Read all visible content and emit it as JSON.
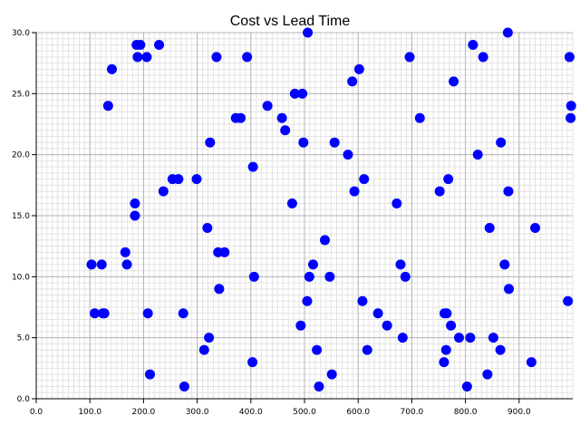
{
  "chart_data": {
    "type": "scatter",
    "title": "Cost vs Lead Time",
    "xlabel": "",
    "ylabel": "",
    "xlim": [
      0,
      1000
    ],
    "ylim": [
      0,
      30
    ],
    "x_ticks": [
      0,
      100,
      200,
      300,
      400,
      500,
      600,
      700,
      800,
      900
    ],
    "x_tick_labels": [
      "0.0",
      "100.0",
      "200.0",
      "300.0",
      "400.0",
      "500.0",
      "600.0",
      "700.0",
      "800.0",
      "900.0"
    ],
    "y_ticks": [
      0,
      5,
      10,
      15,
      20,
      25,
      30
    ],
    "y_tick_labels": [
      "0.0",
      "5.0",
      "10.0",
      "15.0",
      "20.0",
      "25.0",
      "30.0"
    ],
    "grid": true,
    "marker_color": "#0000ff",
    "series": [
      {
        "name": "Cost vs Lead Time",
        "points": [
          [
            103,
            11
          ],
          [
            109,
            7
          ],
          [
            122,
            11
          ],
          [
            124,
            7
          ],
          [
            127,
            7
          ],
          [
            134,
            24
          ],
          [
            141,
            27
          ],
          [
            166,
            12
          ],
          [
            169,
            11
          ],
          [
            184,
            16
          ],
          [
            184,
            15
          ],
          [
            187,
            29
          ],
          [
            189,
            28
          ],
          [
            194,
            29
          ],
          [
            206,
            28
          ],
          [
            208,
            7
          ],
          [
            212,
            2
          ],
          [
            229,
            29
          ],
          [
            237,
            17
          ],
          [
            254,
            18
          ],
          [
            265,
            18
          ],
          [
            274,
            7
          ],
          [
            276,
            1
          ],
          [
            299,
            18
          ],
          [
            313,
            4
          ],
          [
            319,
            14
          ],
          [
            322,
            5
          ],
          [
            324,
            21
          ],
          [
            336,
            28
          ],
          [
            339,
            12
          ],
          [
            341,
            9
          ],
          [
            351,
            12
          ],
          [
            372,
            23
          ],
          [
            381,
            23
          ],
          [
            393,
            28
          ],
          [
            403,
            3
          ],
          [
            404,
            19
          ],
          [
            406,
            10
          ],
          [
            431,
            24
          ],
          [
            458,
            23
          ],
          [
            464,
            22
          ],
          [
            477,
            16
          ],
          [
            482,
            25
          ],
          [
            493,
            6
          ],
          [
            496,
            25
          ],
          [
            498,
            21
          ],
          [
            505,
            8
          ],
          [
            506,
            30
          ],
          [
            509,
            10
          ],
          [
            516,
            11
          ],
          [
            523,
            4
          ],
          [
            527,
            1
          ],
          [
            538,
            13
          ],
          [
            547,
            10
          ],
          [
            551,
            2
          ],
          [
            556,
            21
          ],
          [
            581,
            20
          ],
          [
            589,
            26
          ],
          [
            593,
            17
          ],
          [
            602,
            27
          ],
          [
            608,
            8
          ],
          [
            611,
            18
          ],
          [
            617,
            4
          ],
          [
            637,
            7
          ],
          [
            654,
            6
          ],
          [
            672,
            16
          ],
          [
            679,
            11
          ],
          [
            683,
            5
          ],
          [
            688,
            10
          ],
          [
            696,
            28
          ],
          [
            715,
            23
          ],
          [
            752,
            17
          ],
          [
            760,
            3
          ],
          [
            761,
            7
          ],
          [
            764,
            4
          ],
          [
            765,
            7
          ],
          [
            768,
            18
          ],
          [
            773,
            6
          ],
          [
            778,
            26
          ],
          [
            788,
            5
          ],
          [
            803,
            1
          ],
          [
            809,
            5
          ],
          [
            814,
            29
          ],
          [
            823,
            20
          ],
          [
            833,
            28
          ],
          [
            841,
            2
          ],
          [
            845,
            14
          ],
          [
            852,
            5
          ],
          [
            865,
            4
          ],
          [
            866,
            21
          ],
          [
            873,
            11
          ],
          [
            879,
            30
          ],
          [
            880,
            17
          ],
          [
            881,
            9
          ],
          [
            923,
            3
          ],
          [
            930,
            14
          ],
          [
            991,
            8
          ],
          [
            994,
            28
          ],
          [
            996,
            23
          ],
          [
            997,
            24
          ]
        ]
      }
    ]
  }
}
